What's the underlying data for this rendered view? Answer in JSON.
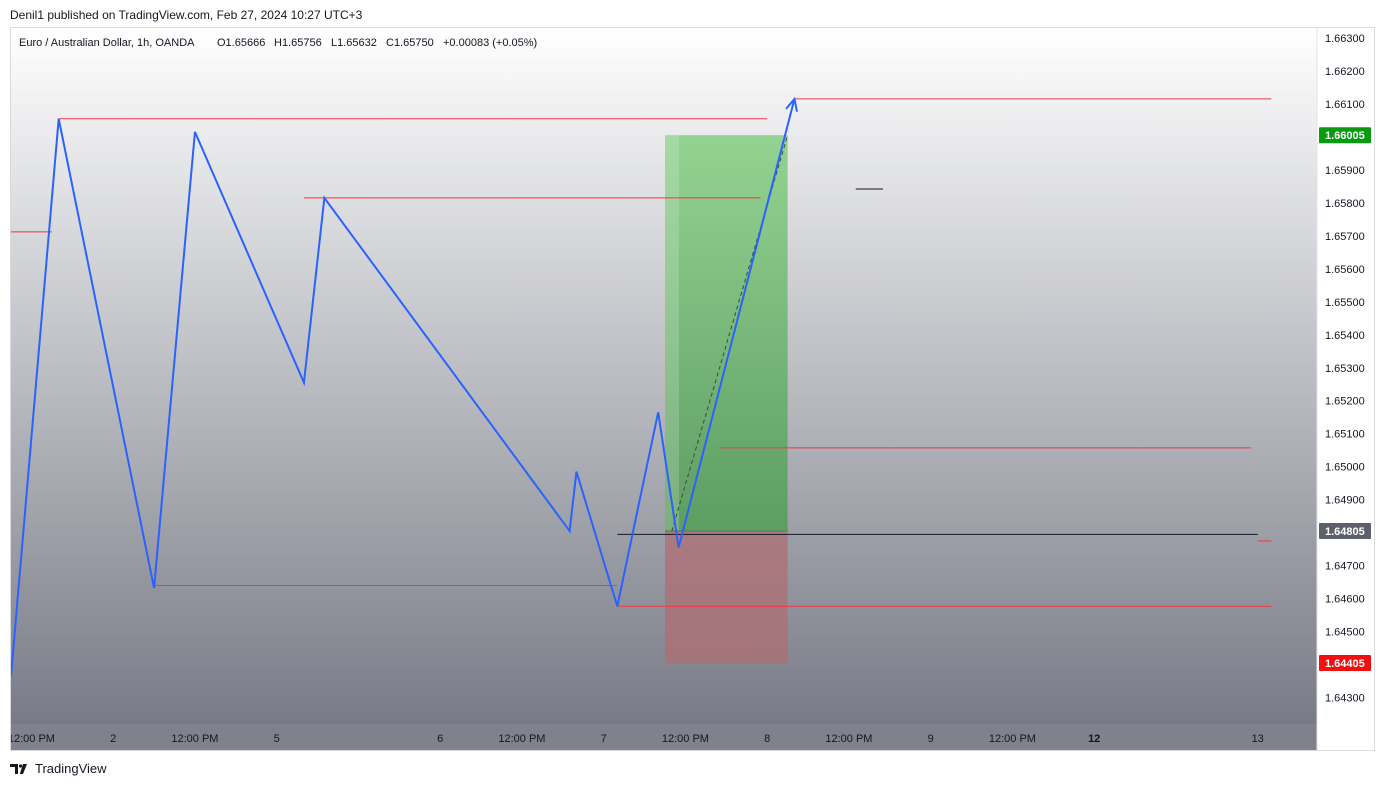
{
  "header": {
    "published_text": "Denil1 published on TradingView.com, Feb 27, 2024 10:27 UTC+3"
  },
  "chart_data": {
    "type": "line",
    "title": "Euro / Australian Dollar, 1h, OANDA",
    "ohlc": {
      "open": "O1.65666",
      "high": "H1.65756",
      "low": "L1.65632",
      "close": "C1.65750",
      "change": "+0.00083 (+0.05%)"
    },
    "ylim": [
      1.6422,
      1.6633
    ],
    "y_ticks": [
      "1.66300",
      "1.66200",
      "1.66100",
      "1.65900",
      "1.65800",
      "1.65700",
      "1.65600",
      "1.65500",
      "1.65400",
      "1.65300",
      "1.65200",
      "1.65100",
      "1.65000",
      "1.64900",
      "1.64700",
      "1.64600",
      "1.64500",
      "1.64300"
    ],
    "x_ticks": [
      "12:00 PM",
      "2",
      "12:00 PM",
      "5",
      "6",
      "12:00 PM",
      "7",
      "12:00 PM",
      "8",
      "12:00 PM",
      "9",
      "12:00 PM",
      "12",
      "13"
    ],
    "x_ticks_bold": [
      "12"
    ],
    "price_badges": [
      {
        "label": "1.66005",
        "value": 1.66005,
        "color": "#089b0f"
      },
      {
        "label": "1.64805",
        "value": 1.64805,
        "color": "#5d606b"
      },
      {
        "label": "1.64405",
        "value": 1.64405,
        "color": "#f20f0f"
      }
    ],
    "series": [
      {
        "color": "#2962ff",
        "points": [
          [
            "Feb 1 09:00",
            1.64365
          ],
          [
            "Feb 1 16:00",
            1.66055
          ],
          [
            "Feb 2 06:00",
            1.64632
          ],
          [
            "Feb 2 12:00",
            1.66015
          ],
          [
            "Feb 5 04:00",
            1.65255
          ],
          [
            "Feb 5 07:00",
            1.65815
          ],
          [
            "Feb 6 19:00",
            1.64805
          ],
          [
            "Feb 6 20:00",
            1.64985
          ],
          [
            "Feb 7 02:00",
            1.64577
          ],
          [
            "Feb 7 08:00",
            1.65165
          ],
          [
            "Feb 7 11:00",
            1.64755
          ],
          [
            "Feb 8 04:00",
            1.66115
          ]
        ]
      }
    ],
    "levels": [
      {
        "value": 1.65712,
        "from": "Feb 1 09:00",
        "to": "Feb 1 15:00",
        "color": "#f23645"
      },
      {
        "value": 1.66055,
        "from": "Feb 1 16:00",
        "to": "Feb 8 00:00",
        "color": "#f23645"
      },
      {
        "value": 1.65815,
        "from": "Feb 5 04:00",
        "to": "Feb 7 23:00",
        "color": "#f23645"
      },
      {
        "value": 1.6464,
        "from": "Feb 2 06:00",
        "to": "Feb 7 02:00",
        "color": "#f23645"
      },
      {
        "value": 1.64577,
        "from": "Feb 7 02:00",
        "to": "Feb 13 02:00",
        "color": "#f23645"
      },
      {
        "value": 1.66115,
        "from": "Feb 8 04:00",
        "to": "Feb 13 02:00",
        "color": "#f23645"
      },
      {
        "value": 1.65057,
        "from": "Feb 7 17:00",
        "to": "Feb 12 23:00",
        "color": "#f23645"
      },
      {
        "value": 1.64775,
        "from": "Feb 13 00:00",
        "to": "Feb 13 02:00",
        "color": "#f23645"
      },
      {
        "value": 1.64795,
        "from": "Feb 7 02:00",
        "to": "Feb 13 00:00",
        "color": "#131722"
      },
      {
        "value": 1.65842,
        "from": "Feb 8 13:00",
        "to": "Feb 8 17:00",
        "color": "#131722"
      }
    ],
    "position": {
      "type": "long",
      "entry": 1.64805,
      "target": 1.66005,
      "stop": 1.64405,
      "from": "Feb 7 09:00",
      "to": "Feb 8 03:00",
      "path_from": [
        "Feb 7 10:00",
        1.64805
      ],
      "path_to": [
        "Feb 8 03:00",
        1.66005
      ],
      "profit_color": "#5bb85a",
      "loss_color": "#ad6e72"
    },
    "grid": false
  }
}
